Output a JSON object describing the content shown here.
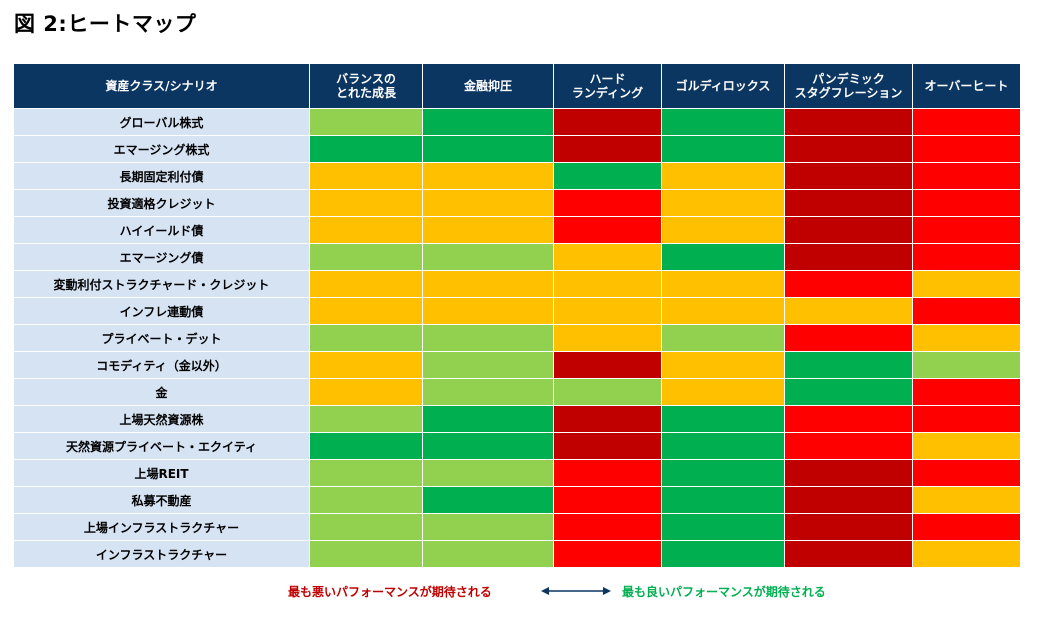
{
  "figure_title": "図 2:ヒートマップ",
  "colors": {
    "header_bg": "#0c3662",
    "rowlabel_bg": "#d6e3f3",
    "dark_red": "#c00000",
    "red": "#ff0000",
    "yellow": "#ffc000",
    "light_green": "#92d050",
    "green": "#00b050"
  },
  "legend": {
    "worst": "最も悪いパフォーマンスが期待される",
    "best": "最も良いパフォーマンスが期待される"
  },
  "chart_data": {
    "type": "heatmap",
    "corner_header": "資産クラス/シナリオ",
    "columns": [
      "バランスの\nとれた成長",
      "金融抑圧",
      "ハード\nランディング",
      "ゴルディロックス",
      "パンデミック\nスタグフレーション",
      "オーバーヒート"
    ],
    "rows": [
      "グローバル株式",
      "エマージング株式",
      "長期固定利付債",
      "投資適格クレジット",
      "ハイイールド債",
      "エマージング債",
      "変動利付ストラクチャード・クレジット",
      "インフレ連動債",
      "プライベート・デット",
      "コモディティ（金以外）",
      "金",
      "上場天然資源株",
      "天然資源プライベート・エクイティ",
      "上場REIT",
      "私募不動産",
      "上場インフラストラクチャー",
      "インフラストラクチャー"
    ],
    "scale": [
      "dark_red",
      "red",
      "yellow",
      "light_green",
      "green"
    ],
    "scale_note": "0 = worst expected performance, 4 = best expected performance",
    "values": [
      [
        3,
        4,
        0,
        4,
        0,
        1
      ],
      [
        4,
        4,
        0,
        4,
        0,
        1
      ],
      [
        2,
        2,
        4,
        2,
        0,
        1
      ],
      [
        2,
        2,
        1,
        2,
        0,
        1
      ],
      [
        2,
        2,
        1,
        2,
        0,
        1
      ],
      [
        3,
        3,
        2,
        4,
        0,
        1
      ],
      [
        2,
        2,
        2,
        2,
        1,
        2
      ],
      [
        2,
        2,
        2,
        2,
        2,
        1
      ],
      [
        3,
        3,
        2,
        3,
        1,
        2
      ],
      [
        2,
        3,
        0,
        2,
        4,
        3
      ],
      [
        2,
        3,
        3,
        2,
        4,
        1
      ],
      [
        3,
        4,
        0,
        4,
        1,
        1
      ],
      [
        4,
        4,
        0,
        4,
        1,
        2
      ],
      [
        3,
        3,
        1,
        4,
        0,
        1
      ],
      [
        3,
        4,
        1,
        4,
        0,
        2
      ],
      [
        3,
        3,
        1,
        4,
        0,
        1
      ],
      [
        3,
        3,
        1,
        4,
        0,
        2
      ]
    ]
  }
}
